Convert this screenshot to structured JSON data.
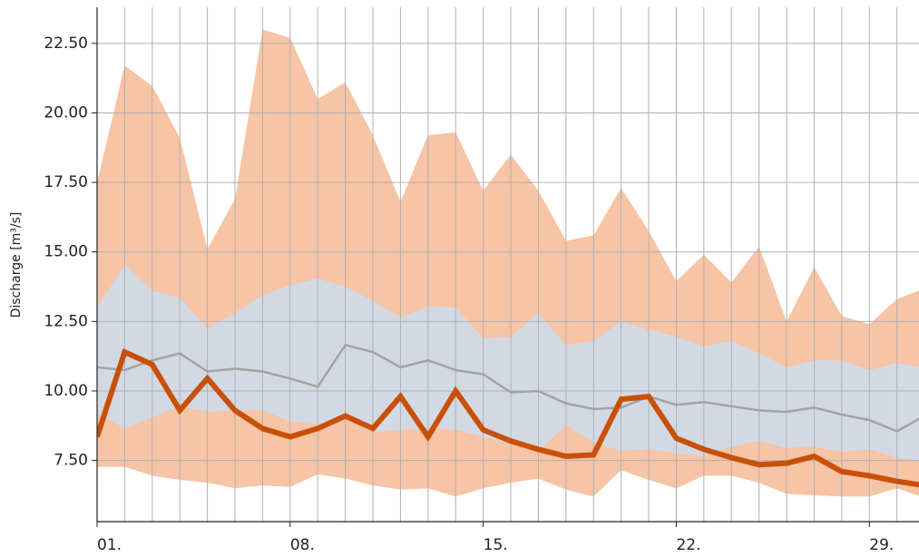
{
  "chart_data": {
    "type": "line",
    "y_label": "Discharge [m³/s]",
    "x": [
      1,
      2,
      3,
      4,
      5,
      6,
      7,
      8,
      9,
      10,
      11,
      12,
      13,
      14,
      15,
      16,
      17,
      18,
      19,
      20,
      21,
      22,
      23,
      24,
      25,
      26,
      27,
      28,
      29,
      30,
      31
    ],
    "xlim": [
      1,
      30.8
    ],
    "xticks": [
      {
        "value": 1,
        "label": "01."
      },
      {
        "value": 8,
        "label": "08."
      },
      {
        "value": 15,
        "label": "15."
      },
      {
        "value": 22,
        "label": "22."
      },
      {
        "value": 29,
        "label": "29."
      }
    ],
    "ylim": [
      5.3,
      23.8
    ],
    "yticks": [
      {
        "value": 7.5,
        "label": "7.50"
      },
      {
        "value": 10,
        "label": "10.00"
      },
      {
        "value": 12.5,
        "label": "12.50"
      },
      {
        "value": 15,
        "label": "15.00"
      },
      {
        "value": 17.5,
        "label": "17.50"
      },
      {
        "value": 20,
        "label": "20.00"
      },
      {
        "value": 22.5,
        "label": "22.50"
      }
    ],
    "grid": true,
    "bands": [
      {
        "color": "#f7c4a5",
        "upper": [
          17.5,
          21.7,
          20.97,
          19.1,
          15.1,
          16.9,
          23.0,
          22.7,
          20.5,
          21.1,
          19.2,
          16.8,
          19.2,
          19.3,
          17.2,
          18.5,
          17.2,
          15.4,
          15.6,
          17.3,
          15.75,
          13.95,
          14.9,
          13.9,
          15.2,
          12.5,
          14.45,
          12.7,
          12.4,
          13.3,
          13.7
        ],
        "lower": [
          7.27,
          7.27,
          6.95,
          6.8,
          6.7,
          6.5,
          6.6,
          6.55,
          7.0,
          6.85,
          6.6,
          6.45,
          6.5,
          6.2,
          6.5,
          6.7,
          6.85,
          6.45,
          6.2,
          7.15,
          6.8,
          6.5,
          6.95,
          6.95,
          6.7,
          6.3,
          6.25,
          6.2,
          6.2,
          6.5,
          6.15
        ]
      },
      {
        "color": "#d3d9e3",
        "upper": [
          13.0,
          14.55,
          13.6,
          13.35,
          12.25,
          12.8,
          13.45,
          13.8,
          14.05,
          13.75,
          13.25,
          12.65,
          13.05,
          13.0,
          11.9,
          11.95,
          12.8,
          11.65,
          11.8,
          12.5,
          12.2,
          11.95,
          11.6,
          11.8,
          11.35,
          10.85,
          11.1,
          11.1,
          10.75,
          11.0,
          10.85
        ],
        "lower": [
          9.2,
          8.65,
          9.05,
          9.45,
          9.25,
          9.3,
          9.3,
          8.9,
          8.8,
          9.0,
          8.5,
          8.6,
          8.65,
          8.6,
          8.35,
          8.1,
          7.85,
          8.75,
          8.15,
          7.85,
          7.9,
          7.75,
          7.65,
          8.0,
          8.2,
          7.95,
          8.0,
          7.8,
          7.9,
          7.6,
          7.45
        ]
      }
    ],
    "series": [
      {
        "color": "#a3a3a3",
        "values": [
          10.85,
          10.75,
          11.1,
          11.35,
          10.7,
          10.8,
          10.7,
          10.45,
          10.15,
          11.65,
          11.4,
          10.85,
          11.1,
          10.75,
          10.6,
          9.95,
          10.0,
          9.55,
          9.35,
          9.4,
          9.8,
          9.5,
          9.6,
          9.45,
          9.3,
          9.25,
          9.4,
          9.15,
          8.95,
          8.55,
          9.1
        ]
      },
      {
        "color": "#c8500a",
        "values": [
          8.35,
          11.4,
          10.95,
          9.3,
          10.45,
          9.3,
          8.65,
          8.35,
          8.65,
          9.1,
          8.65,
          9.8,
          8.35,
          10.0,
          8.6,
          8.2,
          7.9,
          7.65,
          7.7,
          9.7,
          9.8,
          8.3,
          7.9,
          7.6,
          7.35,
          7.4,
          7.65,
          7.1,
          6.95,
          6.75,
          6.6
        ]
      }
    ]
  }
}
